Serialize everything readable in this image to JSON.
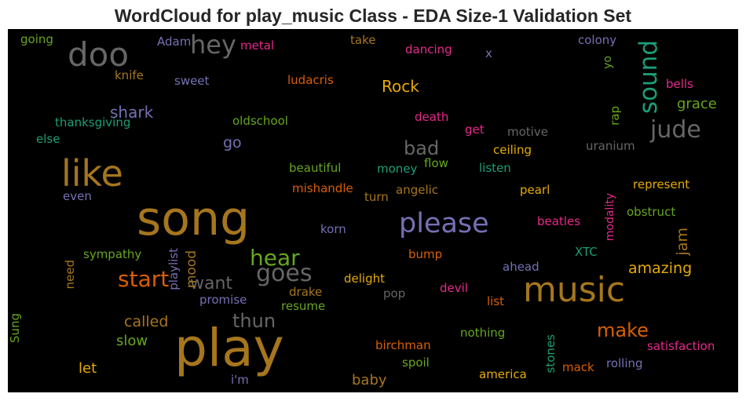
{
  "title": "WordCloud for play_music Class - EDA Size-1 Validation Set",
  "colors": {
    "orange": "#e6ab02",
    "brown": "#a6761d",
    "gray": "#666666",
    "purple": "#7570b3",
    "green": "#66a61e",
    "teal": "#1b9e77",
    "darkorange": "#d95f02",
    "pink": "#e7298a"
  },
  "words": [
    {
      "text": "play",
      "color": "#a6761d"
    },
    {
      "text": "song",
      "color": "#a6761d"
    },
    {
      "text": "music",
      "color": "#a6761d"
    },
    {
      "text": "like",
      "color": "#a6761d"
    },
    {
      "text": "doo",
      "color": "#666666"
    },
    {
      "text": "please",
      "color": "#7570b3"
    },
    {
      "text": "sound",
      "color": "#1b9e77"
    },
    {
      "text": "goes",
      "color": "#666666"
    },
    {
      "text": "hey",
      "color": "#666666"
    },
    {
      "text": "start",
      "color": "#d95f02"
    },
    {
      "text": "hear",
      "color": "#66a61e"
    },
    {
      "text": "jude",
      "color": "#666666"
    },
    {
      "text": "want",
      "color": "#666666"
    },
    {
      "text": "thun",
      "color": "#666666"
    },
    {
      "text": "make",
      "color": "#d95f02"
    },
    {
      "text": "bad",
      "color": "#666666"
    },
    {
      "text": "Rock",
      "color": "#e6ab02"
    },
    {
      "text": "shark",
      "color": "#7570b3"
    },
    {
      "text": "amazing",
      "color": "#e6ab02"
    },
    {
      "text": "called",
      "color": "#a6761d"
    },
    {
      "text": "slow",
      "color": "#66a61e"
    },
    {
      "text": "baby",
      "color": "#a6761d"
    },
    {
      "text": "let",
      "color": "#e6ab02"
    },
    {
      "text": "grace",
      "color": "#66a61e"
    },
    {
      "text": "go",
      "color": "#7570b3"
    },
    {
      "text": "jam",
      "color": "#a6761d"
    },
    {
      "text": "mood",
      "color": "#a6761d"
    },
    {
      "text": "playlist",
      "color": "#7570b3"
    },
    {
      "text": "going",
      "color": "#66a61e"
    },
    {
      "text": "Adam",
      "color": "#7570b3"
    },
    {
      "text": "metal",
      "color": "#e7298a"
    },
    {
      "text": "take",
      "color": "#a6761d"
    },
    {
      "text": "dancing",
      "color": "#e7298a"
    },
    {
      "text": "x",
      "color": "#7570b3"
    },
    {
      "text": "colony",
      "color": "#7570b3"
    },
    {
      "text": "yo",
      "color": "#66a61e"
    },
    {
      "text": "knife",
      "color": "#a6761d"
    },
    {
      "text": "sweet",
      "color": "#7570b3"
    },
    {
      "text": "ludacris",
      "color": "#d95f02"
    },
    {
      "text": "bells",
      "color": "#e7298a"
    },
    {
      "text": "thanksgiving",
      "color": "#1b9e77"
    },
    {
      "text": "oldschool",
      "color": "#66a61e"
    },
    {
      "text": "death",
      "color": "#e7298a"
    },
    {
      "text": "get",
      "color": "#e7298a"
    },
    {
      "text": "motive",
      "color": "#666666"
    },
    {
      "text": "rap",
      "color": "#66a61e"
    },
    {
      "text": "else",
      "color": "#1b9e77"
    },
    {
      "text": "ceiling",
      "color": "#e6ab02"
    },
    {
      "text": "uranium",
      "color": "#666666"
    },
    {
      "text": "beautiful",
      "color": "#66a61e"
    },
    {
      "text": "money",
      "color": "#1b9e77"
    },
    {
      "text": "flow",
      "color": "#66a61e"
    },
    {
      "text": "listen",
      "color": "#1b9e77"
    },
    {
      "text": "represent",
      "color": "#e6ab02"
    },
    {
      "text": "mishandle",
      "color": "#d95f02"
    },
    {
      "text": "angelic",
      "color": "#a6761d"
    },
    {
      "text": "pearl",
      "color": "#e6ab02"
    },
    {
      "text": "even",
      "color": "#7570b3"
    },
    {
      "text": "turn",
      "color": "#a6761d"
    },
    {
      "text": "obstruct",
      "color": "#66a61e"
    },
    {
      "text": "modality",
      "color": "#e7298a"
    },
    {
      "text": "korn",
      "color": "#7570b3"
    },
    {
      "text": "beatles",
      "color": "#e7298a"
    },
    {
      "text": "sympathy",
      "color": "#66a61e"
    },
    {
      "text": "bump",
      "color": "#d95f02"
    },
    {
      "text": "XTC",
      "color": "#1b9e77"
    },
    {
      "text": "need",
      "color": "#a6761d"
    },
    {
      "text": "ahead",
      "color": "#7570b3"
    },
    {
      "text": "delight",
      "color": "#e6ab02"
    },
    {
      "text": "drake",
      "color": "#a6761d"
    },
    {
      "text": "devil",
      "color": "#e7298a"
    },
    {
      "text": "promise",
      "color": "#7570b3"
    },
    {
      "text": "pop",
      "color": "#666666"
    },
    {
      "text": "list",
      "color": "#d95f02"
    },
    {
      "text": "resume",
      "color": "#66a61e"
    },
    {
      "text": "Sung",
      "color": "#66a61e"
    },
    {
      "text": "nothing",
      "color": "#66a61e"
    },
    {
      "text": "satisfaction",
      "color": "#e7298a"
    },
    {
      "text": "birchman",
      "color": "#d95f02"
    },
    {
      "text": "stones",
      "color": "#1b9e77"
    },
    {
      "text": "spoil",
      "color": "#66a61e"
    },
    {
      "text": "mack",
      "color": "#d95f02"
    },
    {
      "text": "rolling",
      "color": "#7570b3"
    },
    {
      "text": "i'm",
      "color": "#7570b3"
    },
    {
      "text": "america",
      "color": "#e6ab02"
    }
  ]
}
